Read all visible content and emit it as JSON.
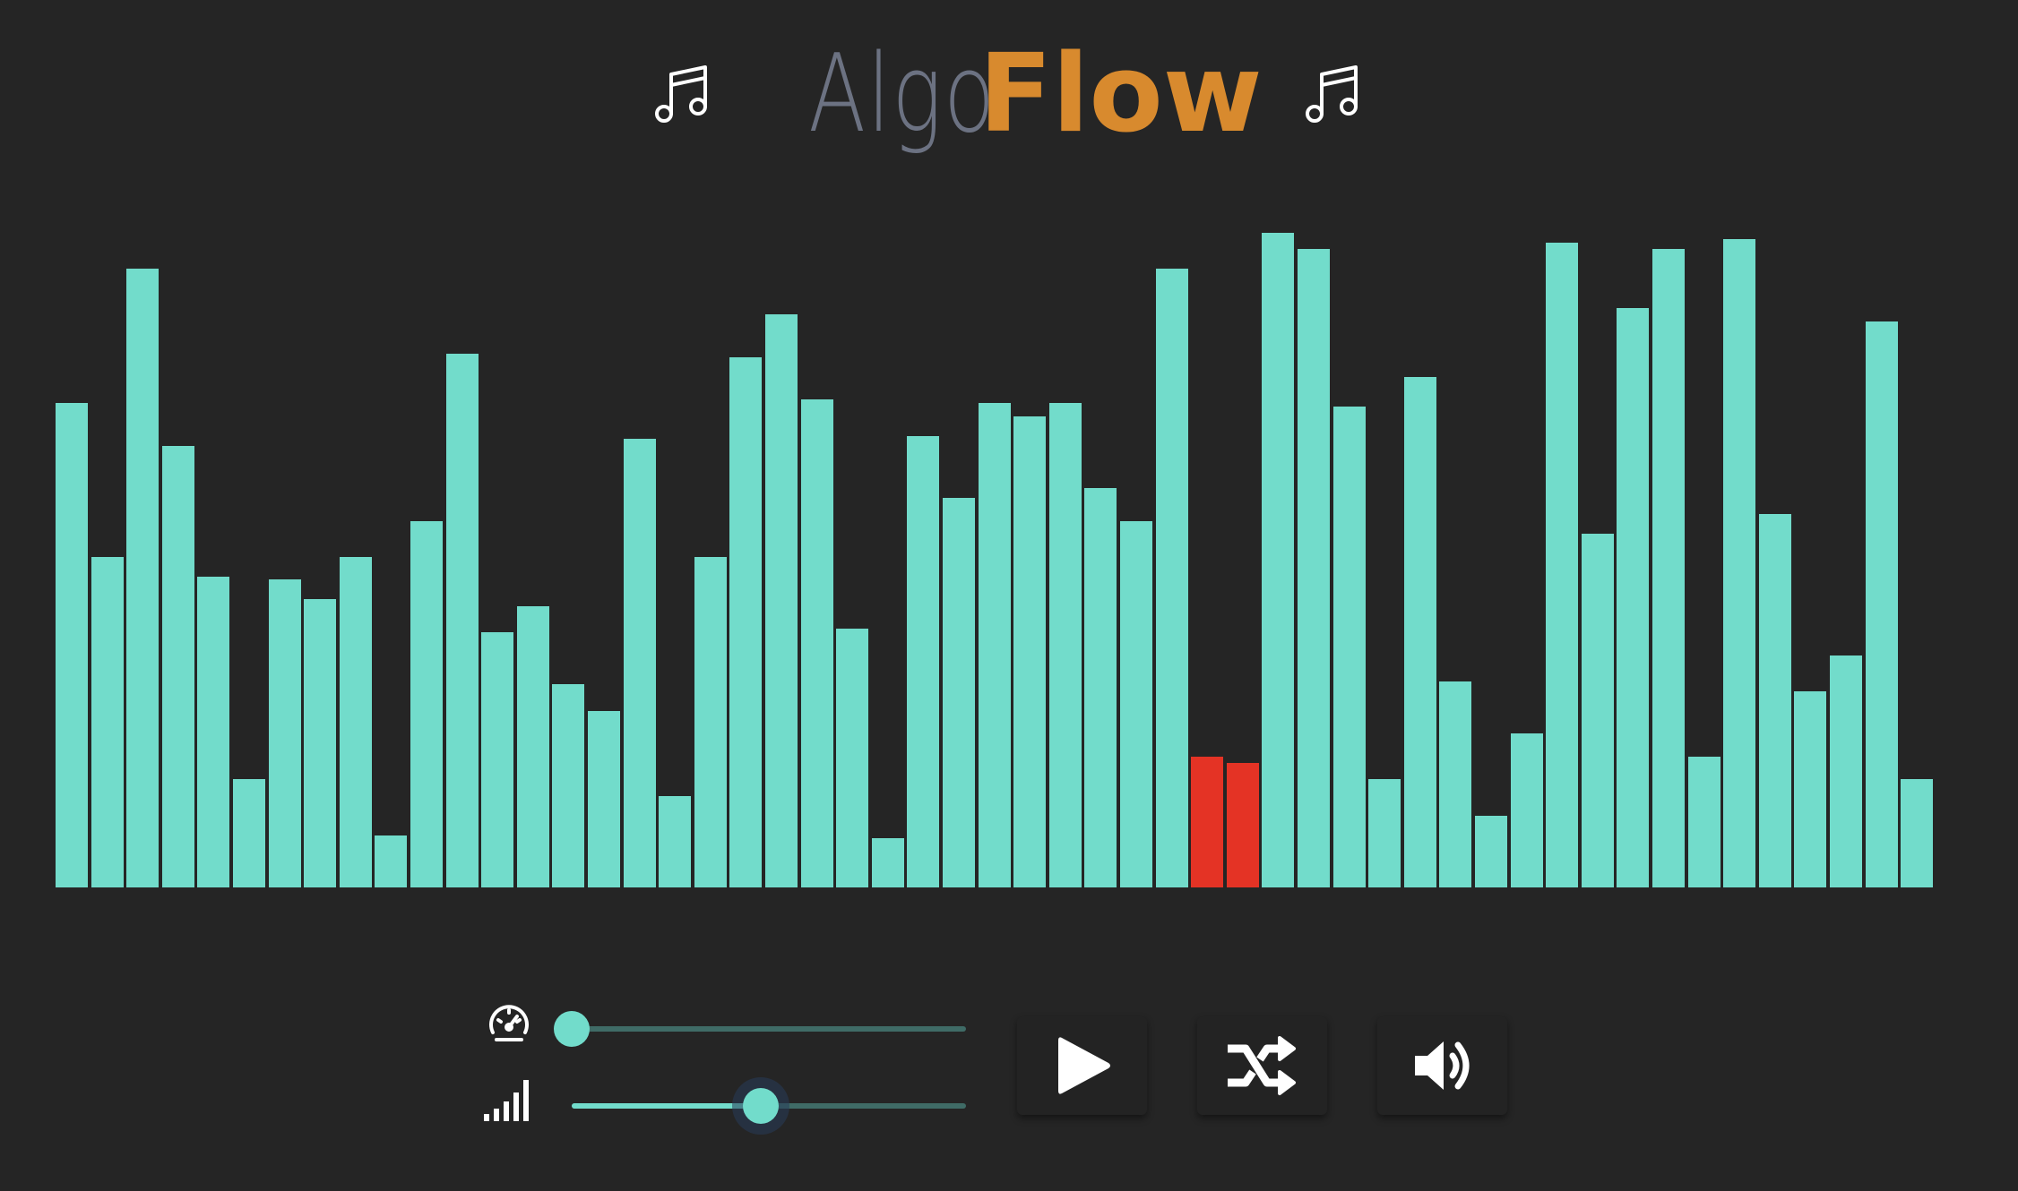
{
  "header": {
    "logo_part1": "Algo",
    "logo_part2": "Flow",
    "left_icon": "music-note-icon",
    "right_icon": "music-note-icon"
  },
  "colors": {
    "background": "#252525",
    "bar": "#72dccb",
    "bar_active": "#e43325",
    "logo_gray": "#6c7282",
    "logo_orange": "#d88a2e",
    "slider_track": "#3f6b66"
  },
  "visualizer": {
    "max_value": 100,
    "bars": [
      {
        "value": 74
      },
      {
        "value": 50.5
      },
      {
        "value": 94.5
      },
      {
        "value": 67.5
      },
      {
        "value": 47.5
      },
      {
        "value": 16.5
      },
      {
        "value": 47
      },
      {
        "value": 44
      },
      {
        "value": 50.5
      },
      {
        "value": 8
      },
      {
        "value": 56
      },
      {
        "value": 81.5
      },
      {
        "value": 39
      },
      {
        "value": 43
      },
      {
        "value": 31
      },
      {
        "value": 27
      },
      {
        "value": 68.5
      },
      {
        "value": 14
      },
      {
        "value": 50.5
      },
      {
        "value": 81
      },
      {
        "value": 87.5
      },
      {
        "value": 74.5
      },
      {
        "value": 39.5
      },
      {
        "value": 7.5
      },
      {
        "value": 69
      },
      {
        "value": 59.5
      },
      {
        "value": 74
      },
      {
        "value": 72
      },
      {
        "value": 74
      },
      {
        "value": 61
      },
      {
        "value": 56
      },
      {
        "value": 94.5
      },
      {
        "value": 20,
        "active": true
      },
      {
        "value": 19,
        "active": true
      },
      {
        "value": 100
      },
      {
        "value": 97.5
      },
      {
        "value": 73.5
      },
      {
        "value": 16.5
      },
      {
        "value": 78
      },
      {
        "value": 31.5
      },
      {
        "value": 11
      },
      {
        "value": 23.5
      },
      {
        "value": 98.5
      },
      {
        "value": 54
      },
      {
        "value": 88.5
      },
      {
        "value": 97.5
      },
      {
        "value": 20
      },
      {
        "value": 99
      },
      {
        "value": 57
      },
      {
        "value": 30
      },
      {
        "value": 35.5
      },
      {
        "value": 86.5
      },
      {
        "value": 16.5
      }
    ]
  },
  "controls": {
    "speed_slider": {
      "icon": "speedometer-icon",
      "value": 0
    },
    "size_slider": {
      "icon": "signal-bars-icon",
      "value": 0.48
    },
    "play_button": {
      "icon": "play-icon"
    },
    "shuffle_button": {
      "icon": "shuffle-icon"
    },
    "sound_button": {
      "icon": "volume-icon"
    }
  }
}
